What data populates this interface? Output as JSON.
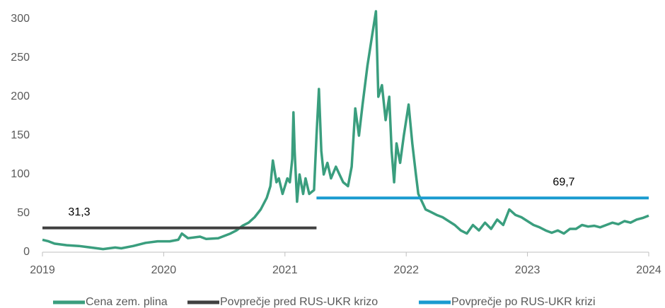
{
  "chart_data": {
    "type": "line",
    "xlim": [
      2019,
      2024
    ],
    "xticks": [
      2019,
      2020,
      2021,
      2022,
      2023,
      2024
    ],
    "ylim": [
      0,
      320
    ],
    "yticks": [
      0,
      50,
      100,
      150,
      200,
      250,
      300
    ],
    "legend": "bottom",
    "series": [
      {
        "name": "Cena zem. plina",
        "color": "#3a9e7e",
        "x": [
          2019.0,
          2019.05,
          2019.1,
          2019.2,
          2019.3,
          2019.4,
          2019.5,
          2019.6,
          2019.65,
          2019.75,
          2019.85,
          2019.95,
          2020.05,
          2020.12,
          2020.15,
          2020.2,
          2020.3,
          2020.35,
          2020.45,
          2020.55,
          2020.6,
          2020.65,
          2020.7,
          2020.75,
          2020.8,
          2020.85,
          2020.88,
          2020.9,
          2020.93,
          2020.95,
          2020.98,
          2021.0,
          2021.02,
          2021.04,
          2021.06,
          2021.07,
          2021.08,
          2021.1,
          2021.12,
          2021.15,
          2021.17,
          2021.2,
          2021.24,
          2021.26,
          2021.28,
          2021.3,
          2021.32,
          2021.35,
          2021.38,
          2021.42,
          2021.45,
          2021.48,
          2021.52,
          2021.55,
          2021.58,
          2021.61,
          2021.64,
          2021.68,
          2021.72,
          2021.75,
          2021.77,
          2021.8,
          2021.83,
          2021.86,
          2021.88,
          2021.9,
          2021.92,
          2021.95,
          2021.98,
          2022.02,
          2022.05,
          2022.08,
          2022.1,
          2022.13,
          2022.16,
          2022.2,
          2022.25,
          2022.3,
          2022.35,
          2022.4,
          2022.45,
          2022.5,
          2022.55,
          2022.6,
          2022.65,
          2022.7,
          2022.75,
          2022.8,
          2022.85,
          2022.9,
          2022.95,
          2023.0,
          2023.05,
          2023.1,
          2023.15,
          2023.2,
          2023.25,
          2023.3,
          2023.35,
          2023.4,
          2023.45,
          2023.5,
          2023.55,
          2023.6,
          2023.65,
          2023.7,
          2023.75,
          2023.8,
          2023.85,
          2023.9,
          2023.95,
          2024.0
        ],
        "values": [
          16,
          14,
          11,
          9,
          8,
          6,
          4,
          6,
          5,
          8,
          12,
          14,
          14,
          16,
          24,
          18,
          20,
          17,
          18,
          24,
          28,
          34,
          38,
          45,
          55,
          70,
          85,
          118,
          90,
          95,
          75,
          85,
          95,
          90,
          120,
          180,
          130,
          65,
          100,
          75,
          95,
          75,
          80,
          150,
          210,
          130,
          100,
          115,
          95,
          110,
          100,
          90,
          85,
          110,
          185,
          150,
          190,
          240,
          280,
          310,
          200,
          215,
          170,
          200,
          130,
          90,
          140,
          115,
          150,
          190,
          140,
          100,
          75,
          65,
          55,
          52,
          48,
          45,
          40,
          35,
          28,
          24,
          35,
          28,
          38,
          30,
          42,
          35,
          55,
          48,
          45,
          40,
          35,
          32,
          28,
          25,
          28,
          24,
          30,
          30,
          35,
          33,
          34,
          32,
          35,
          38,
          36,
          40,
          38,
          42,
          44,
          47
        ]
      },
      {
        "name": "Povprečje pred RUS-UKR krizo",
        "color": "#404040",
        "x": [
          2019.0,
          2021.26
        ],
        "values": [
          31.3,
          31.3
        ],
        "value_labels": [
          "31,3",
          null
        ]
      },
      {
        "name": "Povprečje po RUS-UKR krizi",
        "color": "#1a9bd0",
        "x": [
          2021.26,
          2024.0
        ],
        "values": [
          69.7,
          69.7
        ],
        "value_labels": [
          null,
          "69,7"
        ]
      }
    ]
  }
}
